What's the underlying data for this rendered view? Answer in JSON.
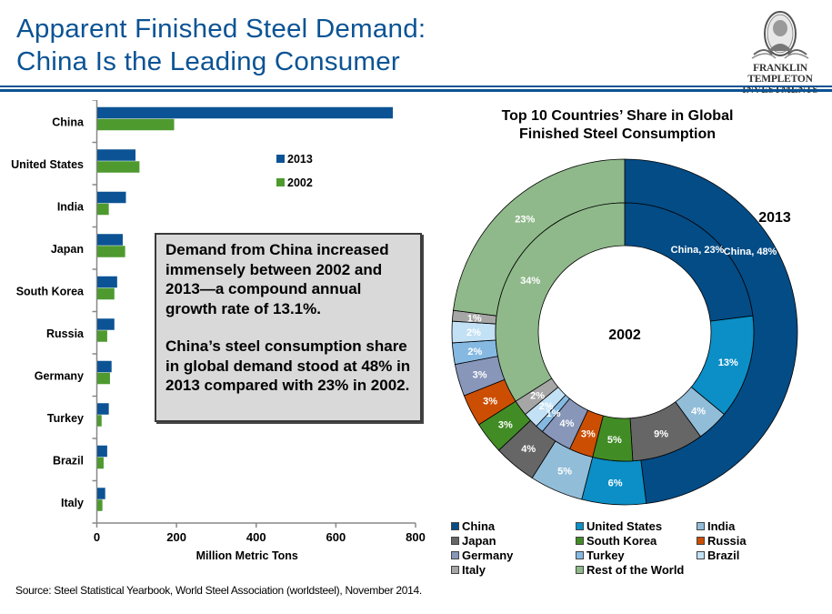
{
  "header": {
    "title_line1": "Apparent Finished Steel Demand:",
    "title_line2": "China Is the Leading Consumer",
    "logo_line1": "FRANKLIN TEMPLETON",
    "logo_line2": "INVESTMENTS",
    "accent_color": "#0b5394"
  },
  "callout": {
    "paragraph1": "Demand from China increased immensely between 2002 and 2013—a compound annual growth rate of 13.1%.",
    "paragraph2": "China’s steel consumption share in global demand stood at 48% in 2013 compared with 23% in 2002."
  },
  "source": "Source: Steel Statistical Yearbook, World Steel Association (worldsteel), November 2014.",
  "chart_data": [
    {
      "type": "bar",
      "orientation": "horizontal",
      "title": "",
      "xlabel": "Million Metric Tons",
      "ylabel": "",
      "xlim": [
        0,
        800
      ],
      "xticks": [
        0,
        200,
        400,
        600,
        800
      ],
      "categories": [
        "China",
        "United States",
        "India",
        "Japan",
        "South Korea",
        "Russia",
        "Germany",
        "Turkey",
        "Brazil",
        "Italy"
      ],
      "series": [
        {
          "name": "2013",
          "color": "#0b5394",
          "values": [
            743,
            97,
            73,
            65,
            51,
            44,
            37,
            30,
            26,
            21
          ]
        },
        {
          "name": "2002",
          "color": "#4e9a2f",
          "values": [
            194,
            107,
            30,
            71,
            44,
            26,
            33,
            12,
            17,
            14
          ]
        }
      ],
      "legend_position": "right",
      "grid": false
    },
    {
      "type": "pie",
      "variant": "doughnut",
      "title_line1": "Top 10 Countries’ Share in Global",
      "title_line2": "Finished Steel Consumption",
      "outer_ring_label": "2013",
      "inner_ring_label": "2002",
      "categories": [
        "China",
        "United States",
        "India",
        "Japan",
        "South Korea",
        "Russia",
        "Germany",
        "Turkey",
        "Brazil",
        "Italy",
        "Rest of the World"
      ],
      "colors": [
        "#034c86",
        "#0b8fc6",
        "#92bdd9",
        "#666666",
        "#428c26",
        "#cc4e02",
        "#8796b9",
        "#85b9e2",
        "#c3e1f5",
        "#a6a6a6",
        "#8fb98a"
      ],
      "series": [
        {
          "name": "2013",
          "ring": "outer",
          "values": [
            48,
            6,
            5,
            4,
            3,
            3,
            3,
            2,
            2,
            1,
            23
          ],
          "labels": [
            "China, 48%",
            "6%",
            "5%",
            "4%",
            "3%",
            "3%",
            "3%",
            "2%",
            "2%",
            "1%",
            "23%"
          ]
        },
        {
          "name": "2002",
          "ring": "inner",
          "values": [
            23,
            13,
            4,
            9,
            5,
            3,
            4,
            1,
            2,
            2,
            34
          ],
          "labels": [
            "China, 23%",
            "13%",
            "4%",
            "9%",
            "5%",
            "3%",
            "4%",
            "1%",
            "2%",
            "2%",
            "34%"
          ]
        }
      ],
      "legend_position": "bottom"
    }
  ]
}
